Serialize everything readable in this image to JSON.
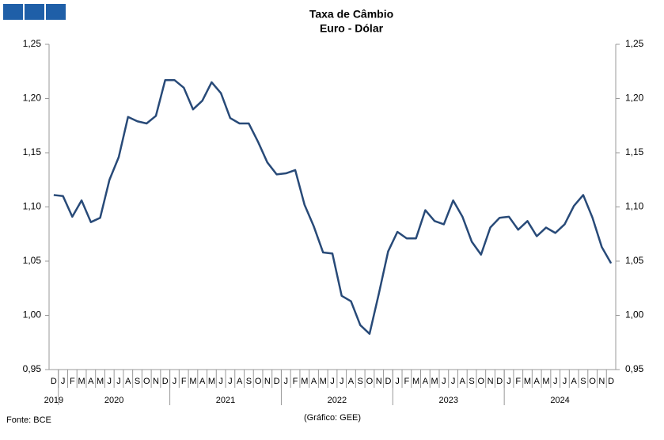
{
  "chart_data": {
    "type": "line",
    "title": "Taxa de Câmbio",
    "subtitle": "Euro - Dólar",
    "categories": [
      "D",
      "J",
      "F",
      "M",
      "A",
      "M",
      "J",
      "J",
      "A",
      "S",
      "O",
      "N",
      "D",
      "J",
      "F",
      "M",
      "A",
      "M",
      "J",
      "J",
      "A",
      "S",
      "O",
      "N",
      "D",
      "J",
      "F",
      "M",
      "A",
      "M",
      "J",
      "J",
      "A",
      "S",
      "O",
      "N",
      "D",
      "J",
      "F",
      "M",
      "A",
      "M",
      "J",
      "J",
      "A",
      "S",
      "O",
      "N",
      "D",
      "J",
      "F",
      "M",
      "A",
      "M",
      "J",
      "J",
      "A",
      "S",
      "O",
      "N",
      "D"
    ],
    "year_groups": [
      {
        "label": "2019",
        "span": 1
      },
      {
        "label": "2020",
        "span": 12
      },
      {
        "label": "2021",
        "span": 12
      },
      {
        "label": "2022",
        "span": 12
      },
      {
        "label": "2023",
        "span": 12
      },
      {
        "label": "2024",
        "span": 12
      }
    ],
    "series": [
      {
        "name": "Euro - Dólar",
        "color": "#284a78",
        "values": [
          1.111,
          1.11,
          1.091,
          1.106,
          1.086,
          1.09,
          1.125,
          1.146,
          1.183,
          1.179,
          1.177,
          1.184,
          1.217,
          1.217,
          1.21,
          1.19,
          1.198,
          1.215,
          1.205,
          1.182,
          1.177,
          1.177,
          1.16,
          1.141,
          1.13,
          1.131,
          1.134,
          1.102,
          1.082,
          1.058,
          1.057,
          1.018,
          1.013,
          0.991,
          0.983,
          1.02,
          1.059,
          1.077,
          1.071,
          1.071,
          1.097,
          1.087,
          1.084,
          1.106,
          1.091,
          1.068,
          1.056,
          1.081,
          1.09,
          1.091,
          1.079,
          1.087,
          1.073,
          1.081,
          1.076,
          1.084,
          1.101,
          1.111,
          1.09,
          1.063,
          1.048
        ]
      }
    ],
    "ylim": [
      0.95,
      1.25
    ],
    "yticks": [
      {
        "value": 0.95,
        "label": "0,95"
      },
      {
        "value": 1.0,
        "label": "1,00"
      },
      {
        "value": 1.05,
        "label": "1,05"
      },
      {
        "value": 1.1,
        "label": "1,10"
      },
      {
        "value": 1.15,
        "label": "1,15"
      },
      {
        "value": 1.2,
        "label": "1,20"
      },
      {
        "value": 1.25,
        "label": "1,25"
      }
    ],
    "y2lim": [
      0.95,
      1.25
    ],
    "y2ticks": [
      {
        "value": 0.95,
        "label": "0,95"
      },
      {
        "value": 1.0,
        "label": "1,00"
      },
      {
        "value": 1.05,
        "label": "1,05"
      },
      {
        "value": 1.1,
        "label": "1,10"
      },
      {
        "value": 1.15,
        "label": "1,15"
      },
      {
        "value": 1.2,
        "label": "1,20"
      },
      {
        "value": 1.25,
        "label": "1,25"
      }
    ],
    "grid": false,
    "source": "Fonte: BCE",
    "credit": "(Gráfico: GEE)"
  }
}
